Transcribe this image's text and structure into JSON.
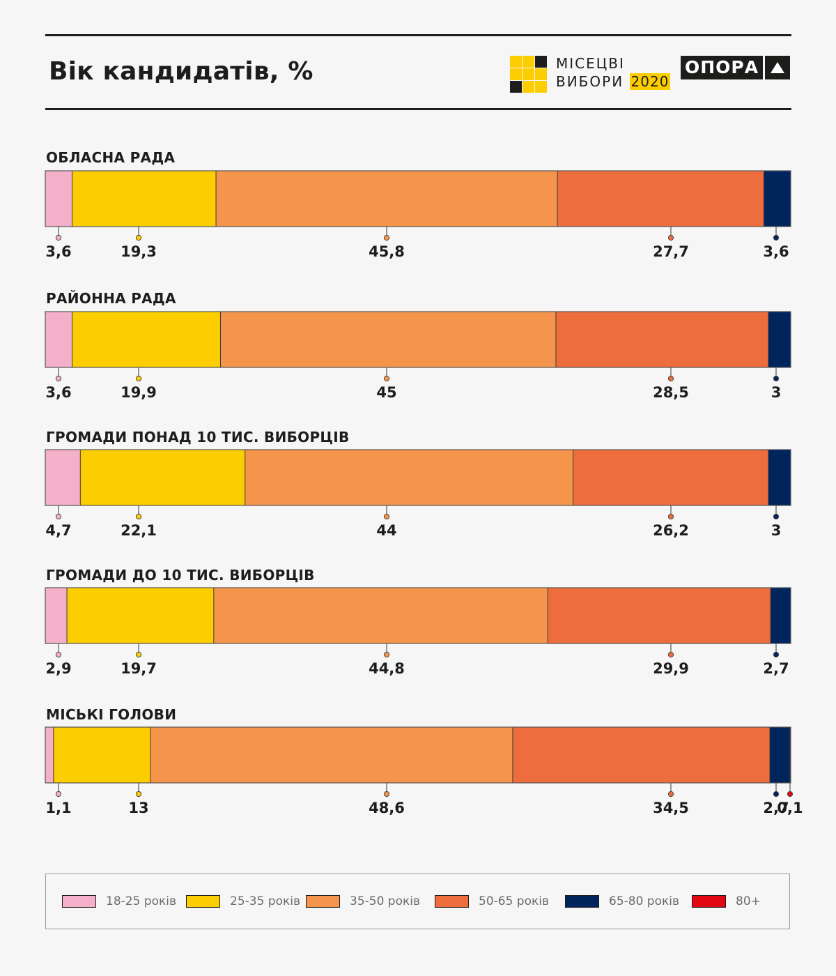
{
  "header": {
    "title": "Вік кандидатів, %",
    "logo_mv_line1": "МІСЕЦВІ",
    "logo_mv_line2": "ВИБОРИ",
    "logo_mv_year": "2020",
    "logo_opora": "ОПОРА"
  },
  "colors": {
    "18-25": "#f4b0c8",
    "25-35": "#fccd00",
    "35-50": "#f5954c",
    "50-65": "#ed6d3d",
    "65-80": "#00255c",
    "80+": "#e30613"
  },
  "chart_data": {
    "type": "bar",
    "orientation": "horizontal",
    "stacked": true,
    "normalized": true,
    "title": "Вік кандидатів, %",
    "categories": [
      "ОБЛАСНА РАДА",
      "РАЙОННА РАДА",
      "ГРОМАДИ ПОНАД 10 ТИС. ВИБОРЦІВ",
      "ГРОМАДИ ДО 10 ТИС. ВИБОРЦІВ",
      "МІСЬКІ ГОЛОВИ"
    ],
    "series": [
      {
        "name": "18-25 років",
        "color": "#f4b0c8",
        "values": [
          3.6,
          3.6,
          4.7,
          2.9,
          1.1
        ],
        "labels": [
          "3,6",
          "3,6",
          "4,7",
          "2,9",
          "1,1"
        ]
      },
      {
        "name": "25-35 років",
        "color": "#fccd00",
        "values": [
          19.3,
          19.9,
          22.1,
          19.7,
          13
        ],
        "labels": [
          "19,3",
          "19,9",
          "22,1",
          "19,7",
          "13"
        ]
      },
      {
        "name": "35-50 років",
        "color": "#f5954c",
        "values": [
          45.8,
          45,
          44,
          44.8,
          48.6
        ],
        "labels": [
          "45,8",
          "45",
          "44",
          "44,8",
          "48,6"
        ]
      },
      {
        "name": "50-65 років",
        "color": "#ed6d3d",
        "values": [
          27.7,
          28.5,
          26.2,
          29.9,
          34.5
        ],
        "labels": [
          "27,7",
          "28,5",
          "26,2",
          "29,9",
          "34,5"
        ]
      },
      {
        "name": "65-80 років",
        "color": "#00255c",
        "values": [
          3.6,
          3,
          3,
          2.7,
          2.7
        ],
        "labels": [
          "3,6",
          "3",
          "3",
          "2,7",
          "2,7"
        ]
      },
      {
        "name": "80+",
        "color": "#e30613",
        "values": [
          0,
          0,
          0,
          0,
          0.1
        ],
        "labels": [
          "",
          "",
          "",
          "",
          "0,1"
        ]
      }
    ],
    "legend": [
      "18-25 років",
      "25-35 років",
      "35-50 років",
      "50-65 років",
      "65-80 років",
      "80+"
    ],
    "legend_position": "bottom",
    "xlim": [
      0,
      100
    ],
    "grid": false
  }
}
